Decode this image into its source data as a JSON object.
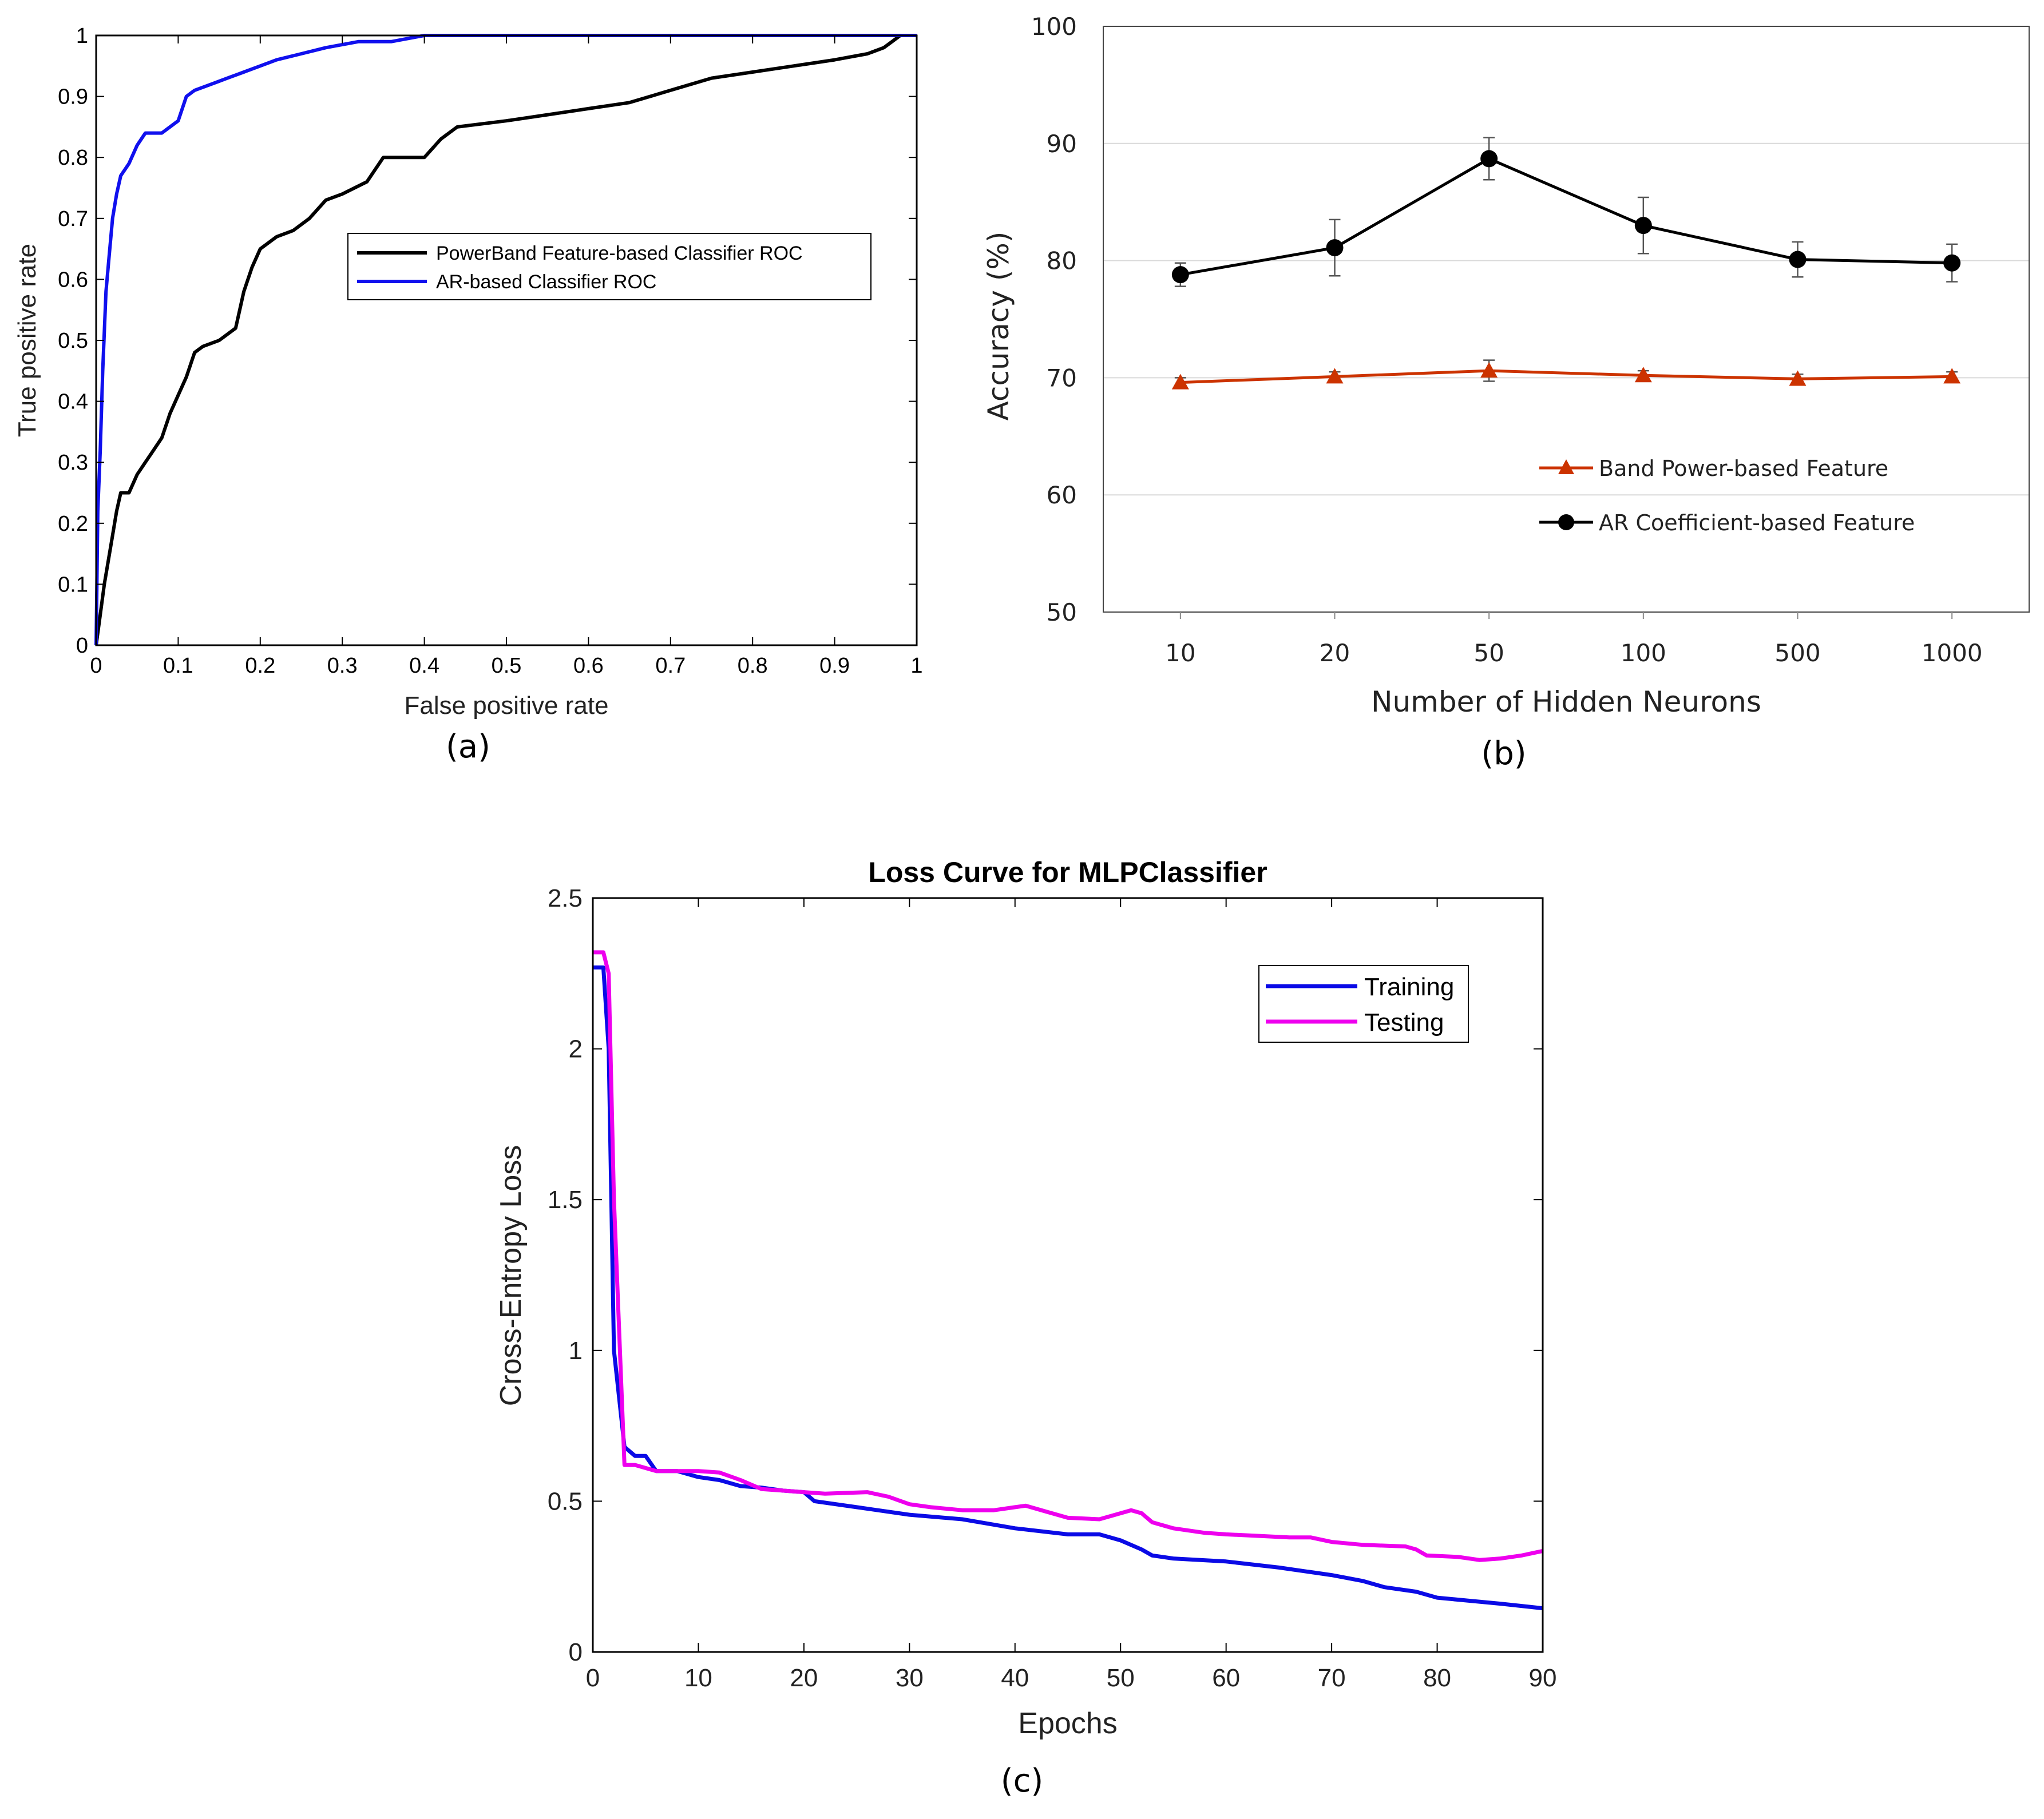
{
  "panel_labels": {
    "a": "(a)",
    "b": "(b)",
    "c": "(c)"
  },
  "colors": {
    "roc_powerband": "#000000",
    "roc_ar": "#1010ee",
    "band_power": "#cc3300",
    "ar_coefficient": "#000000",
    "training": "#0a0ae6",
    "testing": "#ee00ee"
  },
  "chart_data": [
    {
      "id": "a",
      "type": "line",
      "xlabel": "False positive rate",
      "ylabel": "True positive rate",
      "xlim": [
        0,
        1
      ],
      "ylim": [
        0,
        1
      ],
      "xticks": [
        "0",
        "0.1",
        "0.2",
        "0.3",
        "0.4",
        "0.5",
        "0.6",
        "0.7",
        "0.8",
        "0.9",
        "1"
      ],
      "yticks": [
        "0",
        "0.1",
        "0.2",
        "0.3",
        "0.4",
        "0.5",
        "0.6",
        "0.7",
        "0.8",
        "0.9",
        "1"
      ],
      "legend_position": "center-right",
      "series": [
        {
          "name": "PowerBand Feature-based Classifier ROC",
          "x": [
            0,
            0.005,
            0.01,
            0.015,
            0.02,
            0.025,
            0.03,
            0.04,
            0.05,
            0.06,
            0.07,
            0.08,
            0.09,
            0.1,
            0.11,
            0.12,
            0.13,
            0.15,
            0.17,
            0.18,
            0.19,
            0.2,
            0.22,
            0.24,
            0.26,
            0.28,
            0.3,
            0.33,
            0.35,
            0.4,
            0.42,
            0.44,
            0.5,
            0.55,
            0.6,
            0.65,
            0.7,
            0.75,
            0.8,
            0.85,
            0.9,
            0.94,
            0.96,
            0.97,
            0.98,
            1.0
          ],
          "values": [
            0,
            0.05,
            0.1,
            0.14,
            0.18,
            0.22,
            0.25,
            0.25,
            0.28,
            0.3,
            0.32,
            0.34,
            0.38,
            0.41,
            0.44,
            0.48,
            0.49,
            0.5,
            0.52,
            0.58,
            0.62,
            0.65,
            0.67,
            0.68,
            0.7,
            0.73,
            0.74,
            0.76,
            0.8,
            0.8,
            0.83,
            0.85,
            0.86,
            0.87,
            0.88,
            0.89,
            0.91,
            0.93,
            0.94,
            0.95,
            0.96,
            0.97,
            0.98,
            0.99,
            1.0,
            1.0
          ]
        },
        {
          "name": "AR-based Classifier ROC",
          "x": [
            0,
            0.002,
            0.005,
            0.008,
            0.012,
            0.016,
            0.02,
            0.025,
            0.03,
            0.04,
            0.05,
            0.06,
            0.08,
            0.1,
            0.11,
            0.12,
            0.14,
            0.16,
            0.18,
            0.2,
            0.22,
            0.25,
            0.28,
            0.32,
            0.36,
            0.4,
            0.45,
            0.5,
            0.6,
            0.7,
            0.8,
            0.9,
            1.0
          ],
          "values": [
            0,
            0.22,
            0.32,
            0.45,
            0.58,
            0.64,
            0.7,
            0.74,
            0.77,
            0.79,
            0.82,
            0.84,
            0.84,
            0.86,
            0.9,
            0.91,
            0.92,
            0.93,
            0.94,
            0.95,
            0.96,
            0.97,
            0.98,
            0.99,
            0.99,
            1.0,
            1.0,
            1.0,
            1.0,
            1.0,
            1.0,
            1.0,
            1.0
          ]
        }
      ]
    },
    {
      "id": "b",
      "type": "line",
      "xlabel": "Number of Hidden Neurons",
      "ylabel": "Accuracy (%)",
      "categories": [
        "10",
        "20",
        "50",
        "100",
        "500",
        "1000"
      ],
      "ylim": [
        50,
        100
      ],
      "yticks": [
        "50",
        "60",
        "70",
        "80",
        "90",
        "100"
      ],
      "grid": true,
      "legend_position": "lower-right",
      "series": [
        {
          "name": "Band Power-based Feature",
          "marker": "triangle",
          "values": [
            69.6,
            70.1,
            70.6,
            70.2,
            69.9,
            70.1
          ],
          "errors": [
            0.4,
            0.4,
            0.9,
            0.4,
            0.4,
            0.4
          ]
        },
        {
          "name": "AR Coefficient-based Feature",
          "marker": "circle",
          "values": [
            78.8,
            81.1,
            88.7,
            83.0,
            80.1,
            79.8
          ],
          "errors": [
            1.0,
            2.4,
            1.8,
            2.4,
            1.5,
            1.6
          ]
        }
      ]
    },
    {
      "id": "c",
      "type": "line",
      "title": "Loss Curve for MLPClassifier",
      "xlabel": "Epochs",
      "ylabel": "Cross-Entropy Loss",
      "xlim": [
        0,
        90
      ],
      "ylim": [
        0,
        2.5
      ],
      "xticks": [
        "0",
        "10",
        "20",
        "30",
        "40",
        "50",
        "60",
        "70",
        "80",
        "90"
      ],
      "yticks": [
        "0",
        "0.5",
        "1",
        "1.5",
        "2",
        "2.5"
      ],
      "legend_position": "top-right",
      "series": [
        {
          "name": "Training",
          "x": [
            0,
            1,
            1.5,
            2,
            3,
            4,
            5,
            6,
            8,
            10,
            12,
            14,
            16,
            18,
            20,
            21,
            25,
            30,
            35,
            40,
            45,
            48,
            50,
            52,
            53,
            55,
            60,
            65,
            70,
            73,
            75,
            78,
            80,
            83,
            86,
            90
          ],
          "values": [
            2.27,
            2.27,
            2.0,
            1.0,
            0.68,
            0.65,
            0.65,
            0.6,
            0.6,
            0.58,
            0.57,
            0.55,
            0.545,
            0.535,
            0.53,
            0.5,
            0.48,
            0.455,
            0.44,
            0.41,
            0.39,
            0.39,
            0.37,
            0.34,
            0.32,
            0.31,
            0.3,
            0.28,
            0.255,
            0.235,
            0.215,
            0.2,
            0.18,
            0.17,
            0.16,
            0.145
          ]
        },
        {
          "name": "Testing",
          "x": [
            0,
            1,
            1.5,
            2,
            3,
            4,
            6,
            8,
            10,
            12,
            14,
            16,
            18,
            20,
            22,
            26,
            28,
            30,
            32,
            35,
            38,
            40,
            41,
            43,
            45,
            48,
            50,
            51,
            52,
            53,
            55,
            58,
            60,
            63,
            66,
            68,
            70,
            73,
            77,
            78,
            79,
            82,
            84,
            86,
            88,
            90
          ],
          "values": [
            2.32,
            2.32,
            2.25,
            1.5,
            0.62,
            0.62,
            0.6,
            0.6,
            0.6,
            0.595,
            0.57,
            0.54,
            0.535,
            0.53,
            0.525,
            0.53,
            0.515,
            0.49,
            0.48,
            0.47,
            0.47,
            0.48,
            0.485,
            0.465,
            0.445,
            0.44,
            0.46,
            0.47,
            0.46,
            0.43,
            0.41,
            0.395,
            0.39,
            0.385,
            0.38,
            0.38,
            0.365,
            0.355,
            0.35,
            0.34,
            0.32,
            0.315,
            0.305,
            0.31,
            0.32,
            0.335
          ]
        }
      ]
    }
  ]
}
